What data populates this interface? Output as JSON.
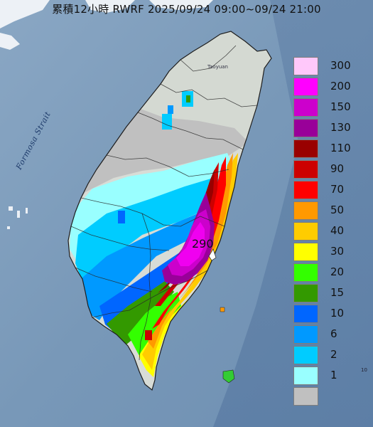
{
  "title": "累積12小時 RWRF 2025/09/24 09:00~09/24 21:00",
  "strait_label": "Formosa Strait",
  "place_label": "Taoyuan",
  "max_label": "290",
  "corner_mark": "10",
  "legend": [
    {
      "label": "300",
      "color": "#ffc8fa"
    },
    {
      "label": "200",
      "color": "#ff00ff"
    },
    {
      "label": "150",
      "color": "#cc00cc"
    },
    {
      "label": "130",
      "color": "#990099"
    },
    {
      "label": "110",
      "color": "#990000"
    },
    {
      "label": "90",
      "color": "#cc0000"
    },
    {
      "label": "70",
      "color": "#ff0000"
    },
    {
      "label": "50",
      "color": "#ff9900"
    },
    {
      "label": "40",
      "color": "#ffcc00"
    },
    {
      "label": "30",
      "color": "#ffff00"
    },
    {
      "label": "20",
      "color": "#33ff00"
    },
    {
      "label": "15",
      "color": "#339900"
    },
    {
      "label": "10",
      "color": "#0066ff"
    },
    {
      "label": "6",
      "color": "#0099ff"
    },
    {
      "label": "2",
      "color": "#00ccff"
    },
    {
      "label": "1",
      "color": "#99ffff"
    },
    {
      "label": "",
      "color": "#c0c0c0"
    }
  ]
}
